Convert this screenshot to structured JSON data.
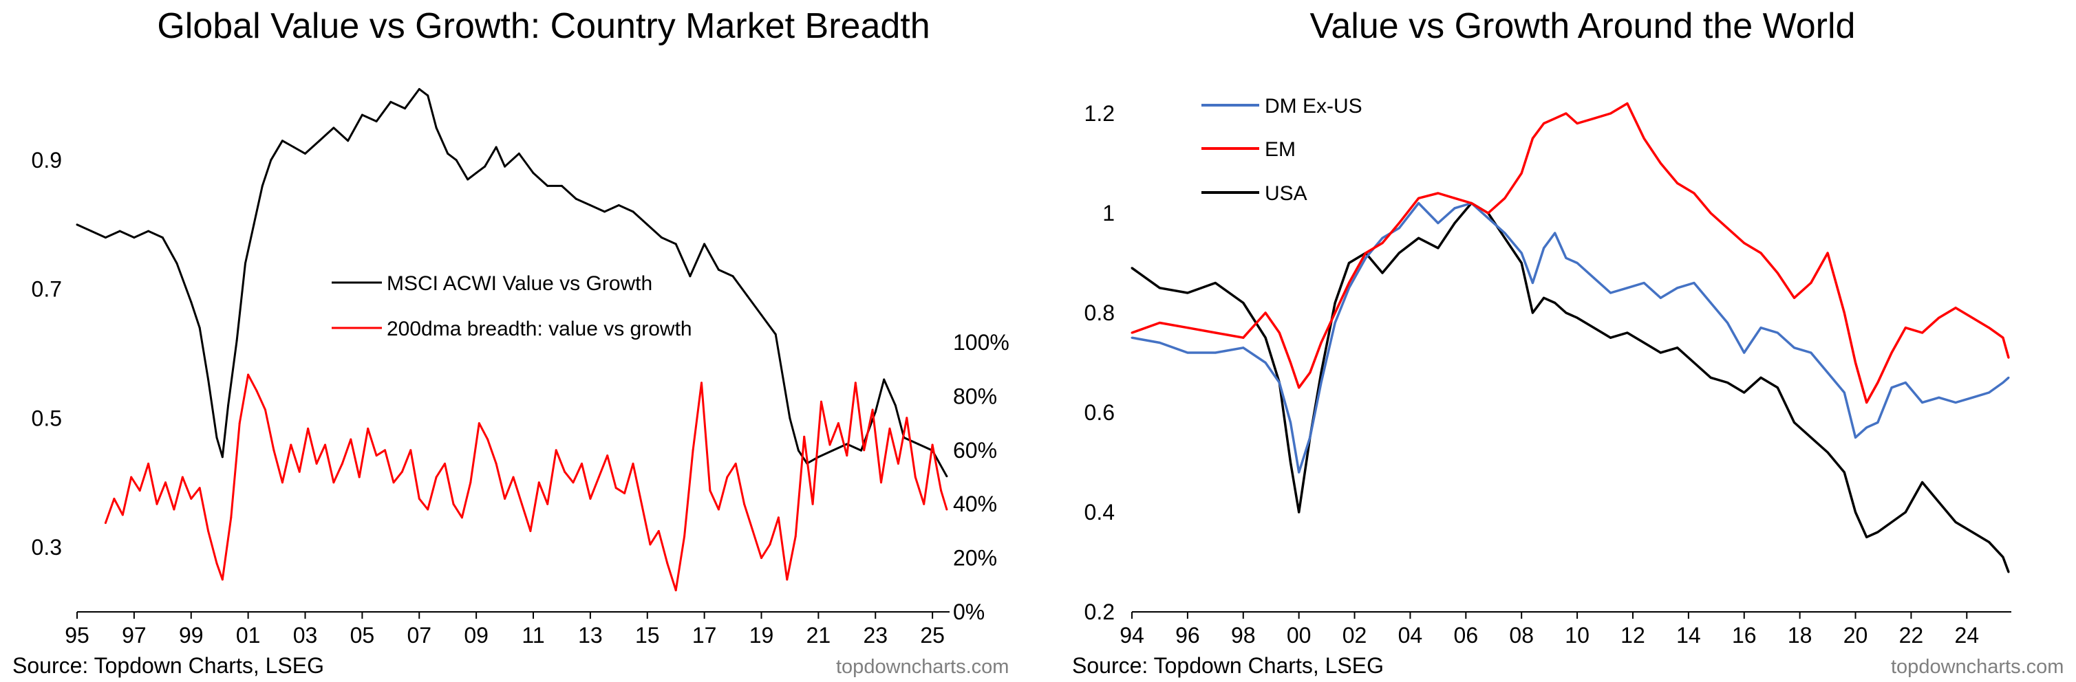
{
  "charts": {
    "left": {
      "title": "Global Value vs Growth: Country Market Breadth",
      "source": "Source: Topdown Charts, LSEG",
      "watermark": "topdowncharts.com"
    },
    "right": {
      "title": "Value vs Growth Around the World",
      "source": "Source: Topdown Charts, LSEG",
      "watermark": "topdowncharts.com"
    }
  },
  "colors": {
    "black": "#000000",
    "red": "#ff0000",
    "blue": "#4472c4",
    "axis": "#000000"
  },
  "chart_data": [
    {
      "type": "line",
      "title": "Global Value vs Growth: Country Market Breadth",
      "x_range": [
        1995,
        2025.6
      ],
      "x_ticks": [
        1995,
        1997,
        1999,
        2001,
        2003,
        2005,
        2007,
        2009,
        2011,
        2013,
        2015,
        2017,
        2019,
        2021,
        2023,
        2025
      ],
      "x_tick_labels": [
        "95",
        "97",
        "99",
        "01",
        "03",
        "05",
        "07",
        "09",
        "11",
        "13",
        "15",
        "17",
        "19",
        "21",
        "23",
        "25"
      ],
      "left_axis": {
        "ylim": [
          0.2,
          1.05
        ],
        "ticks": [
          0.3,
          0.5,
          0.7,
          0.9
        ],
        "tick_labels": [
          "0.3",
          "0.5",
          "0.7",
          "0.9"
        ]
      },
      "right_axis": {
        "ylim": [
          0,
          100
        ],
        "ticks": [
          0,
          20,
          40,
          60,
          80,
          100
        ],
        "tick_labels": [
          "0%",
          "20%",
          "40%",
          "60%",
          "80%",
          "100%"
        ]
      },
      "legend": {
        "placement": "center",
        "entries": [
          "MSCI ACWI Value vs Growth",
          "200dma breadth: value vs growth"
        ]
      },
      "series": [
        {
          "name": "MSCI ACWI Value vs Growth",
          "axis": "left",
          "color": "#000000",
          "x": [
            1995.0,
            1995.5,
            1996.0,
            1996.5,
            1997.0,
            1997.5,
            1998.0,
            1998.5,
            1999.0,
            1999.3,
            1999.6,
            1999.9,
            2000.1,
            2000.3,
            2000.6,
            2000.9,
            2001.2,
            2001.5,
            2001.8,
            2002.2,
            2002.6,
            2003.0,
            2003.5,
            2004.0,
            2004.5,
            2005.0,
            2005.5,
            2006.0,
            2006.5,
            2007.0,
            2007.3,
            2007.6,
            2008.0,
            2008.3,
            2008.7,
            2009.0,
            2009.3,
            2009.7,
            2010.0,
            2010.5,
            2011.0,
            2011.5,
            2012.0,
            2012.5,
            2013.0,
            2013.5,
            2014.0,
            2014.5,
            2015.0,
            2015.5,
            2016.0,
            2016.5,
            2017.0,
            2017.5,
            2018.0,
            2018.5,
            2019.0,
            2019.5,
            2020.0,
            2020.3,
            2020.6,
            2021.0,
            2021.5,
            2022.0,
            2022.5,
            2023.0,
            2023.3,
            2023.7,
            2024.0,
            2024.5,
            2025.0,
            2025.5
          ],
          "y": [
            0.8,
            0.79,
            0.78,
            0.79,
            0.78,
            0.79,
            0.78,
            0.74,
            0.68,
            0.64,
            0.56,
            0.47,
            0.44,
            0.52,
            0.62,
            0.74,
            0.8,
            0.86,
            0.9,
            0.93,
            0.92,
            0.91,
            0.93,
            0.95,
            0.93,
            0.97,
            0.96,
            0.99,
            0.98,
            1.01,
            1.0,
            0.95,
            0.91,
            0.9,
            0.87,
            0.88,
            0.89,
            0.92,
            0.89,
            0.91,
            0.88,
            0.86,
            0.86,
            0.84,
            0.83,
            0.82,
            0.83,
            0.82,
            0.8,
            0.78,
            0.77,
            0.72,
            0.77,
            0.73,
            0.72,
            0.69,
            0.66,
            0.63,
            0.5,
            0.45,
            0.43,
            0.44,
            0.45,
            0.46,
            0.45,
            0.51,
            0.56,
            0.52,
            0.47,
            0.46,
            0.45,
            0.41
          ]
        },
        {
          "name": "200dma breadth: value vs growth",
          "axis": "right",
          "color": "#ff0000",
          "x": [
            1996.0,
            1996.3,
            1996.6,
            1996.9,
            1997.2,
            1997.5,
            1997.8,
            1998.1,
            1998.4,
            1998.7,
            1999.0,
            1999.3,
            1999.6,
            1999.9,
            2000.1,
            2000.4,
            2000.7,
            2001.0,
            2001.3,
            2001.6,
            2001.9,
            2002.2,
            2002.5,
            2002.8,
            2003.1,
            2003.4,
            2003.7,
            2004.0,
            2004.3,
            2004.6,
            2004.9,
            2005.2,
            2005.5,
            2005.8,
            2006.1,
            2006.4,
            2006.7,
            2007.0,
            2007.3,
            2007.6,
            2007.9,
            2008.2,
            2008.5,
            2008.8,
            2009.1,
            2009.4,
            2009.7,
            2010.0,
            2010.3,
            2010.6,
            2010.9,
            2011.2,
            2011.5,
            2011.8,
            2012.1,
            2012.4,
            2012.7,
            2013.0,
            2013.3,
            2013.6,
            2013.9,
            2014.2,
            2014.5,
            2014.8,
            2015.1,
            2015.4,
            2015.7,
            2016.0,
            2016.3,
            2016.6,
            2016.9,
            2017.2,
            2017.5,
            2017.8,
            2018.1,
            2018.4,
            2018.7,
            2019.0,
            2019.3,
            2019.6,
            2019.9,
            2020.2,
            2020.5,
            2020.8,
            2021.1,
            2021.4,
            2021.7,
            2022.0,
            2022.3,
            2022.6,
            2022.9,
            2023.2,
            2023.5,
            2023.8,
            2024.1,
            2024.4,
            2024.7,
            2025.0,
            2025.3,
            2025.5
          ],
          "y": [
            33,
            42,
            36,
            50,
            45,
            55,
            40,
            48,
            38,
            50,
            42,
            46,
            30,
            18,
            12,
            35,
            70,
            88,
            82,
            75,
            60,
            48,
            62,
            52,
            68,
            55,
            62,
            48,
            55,
            64,
            50,
            68,
            58,
            60,
            48,
            52,
            60,
            42,
            38,
            50,
            55,
            40,
            35,
            48,
            70,
            64,
            55,
            42,
            50,
            40,
            30,
            48,
            40,
            60,
            52,
            48,
            55,
            42,
            50,
            58,
            46,
            44,
            55,
            40,
            25,
            30,
            18,
            8,
            28,
            60,
            85,
            45,
            38,
            50,
            55,
            40,
            30,
            20,
            25,
            35,
            12,
            28,
            65,
            40,
            78,
            62,
            70,
            58,
            85,
            60,
            75,
            48,
            68,
            55,
            72,
            50,
            40,
            62,
            45,
            38
          ]
        }
      ]
    },
    {
      "type": "line",
      "title": "Value vs Growth Around the World",
      "x_range": [
        1994,
        2025.6
      ],
      "x_ticks": [
        1994,
        1996,
        1998,
        2000,
        2002,
        2004,
        2006,
        2008,
        2010,
        2012,
        2014,
        2016,
        2018,
        2020,
        2022,
        2024
      ],
      "x_tick_labels": [
        "94",
        "96",
        "98",
        "00",
        "02",
        "04",
        "06",
        "08",
        "10",
        "12",
        "14",
        "16",
        "18",
        "20",
        "22",
        "24"
      ],
      "ylim": [
        0.2,
        1.25
      ],
      "y_ticks": [
        0.2,
        0.4,
        0.6,
        0.8,
        1.0,
        1.2
      ],
      "y_tick_labels": [
        "0.2",
        "0.4",
        "0.6",
        "0.8",
        "1",
        "1.2"
      ],
      "legend": {
        "placement": "top-left",
        "entries": [
          "DM Ex-US",
          "EM",
          "USA"
        ]
      },
      "series": [
        {
          "name": "DM Ex-US",
          "color": "#4472c4",
          "x": [
            1994.0,
            1995.0,
            1996.0,
            1997.0,
            1998.0,
            1998.8,
            1999.3,
            1999.7,
            2000.0,
            2000.4,
            2000.8,
            2001.3,
            2001.8,
            2002.4,
            2003.0,
            2003.6,
            2004.3,
            2005.0,
            2005.6,
            2006.2,
            2006.8,
            2007.4,
            2008.0,
            2008.4,
            2008.8,
            2009.2,
            2009.6,
            2010.0,
            2010.6,
            2011.2,
            2011.8,
            2012.4,
            2013.0,
            2013.6,
            2014.2,
            2014.8,
            2015.4,
            2016.0,
            2016.6,
            2017.2,
            2017.8,
            2018.4,
            2019.0,
            2019.6,
            2020.0,
            2020.4,
            2020.8,
            2021.3,
            2021.8,
            2022.4,
            2023.0,
            2023.6,
            2024.2,
            2024.8,
            2025.3,
            2025.5
          ],
          "y": [
            0.75,
            0.74,
            0.72,
            0.72,
            0.73,
            0.7,
            0.66,
            0.58,
            0.48,
            0.55,
            0.66,
            0.78,
            0.85,
            0.91,
            0.95,
            0.97,
            1.02,
            0.98,
            1.01,
            1.02,
            0.99,
            0.96,
            0.92,
            0.86,
            0.93,
            0.96,
            0.91,
            0.9,
            0.87,
            0.84,
            0.85,
            0.86,
            0.83,
            0.85,
            0.86,
            0.82,
            0.78,
            0.72,
            0.77,
            0.76,
            0.73,
            0.72,
            0.68,
            0.64,
            0.55,
            0.57,
            0.58,
            0.65,
            0.66,
            0.62,
            0.63,
            0.62,
            0.63,
            0.64,
            0.66,
            0.67
          ]
        },
        {
          "name": "EM",
          "color": "#ff0000",
          "x": [
            1994.0,
            1995.0,
            1996.0,
            1997.0,
            1998.0,
            1998.8,
            1999.3,
            1999.7,
            2000.0,
            2000.4,
            2000.8,
            2001.3,
            2001.8,
            2002.4,
            2003.0,
            2003.6,
            2004.3,
            2005.0,
            2005.6,
            2006.2,
            2006.8,
            2007.4,
            2008.0,
            2008.4,
            2008.8,
            2009.2,
            2009.6,
            2010.0,
            2010.6,
            2011.2,
            2011.8,
            2012.4,
            2013.0,
            2013.6,
            2014.2,
            2014.8,
            2015.4,
            2016.0,
            2016.6,
            2017.2,
            2017.8,
            2018.4,
            2019.0,
            2019.6,
            2020.0,
            2020.4,
            2020.8,
            2021.3,
            2021.8,
            2022.4,
            2023.0,
            2023.6,
            2024.2,
            2024.8,
            2025.3,
            2025.5
          ],
          "y": [
            0.76,
            0.78,
            0.77,
            0.76,
            0.75,
            0.8,
            0.76,
            0.7,
            0.65,
            0.68,
            0.74,
            0.8,
            0.86,
            0.92,
            0.94,
            0.98,
            1.03,
            1.04,
            1.03,
            1.02,
            1.0,
            1.03,
            1.08,
            1.15,
            1.18,
            1.19,
            1.2,
            1.18,
            1.19,
            1.2,
            1.22,
            1.15,
            1.1,
            1.06,
            1.04,
            1.0,
            0.97,
            0.94,
            0.92,
            0.88,
            0.83,
            0.86,
            0.92,
            0.8,
            0.7,
            0.62,
            0.66,
            0.72,
            0.77,
            0.76,
            0.79,
            0.81,
            0.79,
            0.77,
            0.75,
            0.71
          ]
        },
        {
          "name": "USA",
          "color": "#000000",
          "x": [
            1994.0,
            1995.0,
            1996.0,
            1997.0,
            1998.0,
            1998.8,
            1999.3,
            1999.7,
            2000.0,
            2000.4,
            2000.8,
            2001.3,
            2001.8,
            2002.4,
            2003.0,
            2003.6,
            2004.3,
            2005.0,
            2005.6,
            2006.2,
            2006.8,
            2007.4,
            2008.0,
            2008.4,
            2008.8,
            2009.2,
            2009.6,
            2010.0,
            2010.6,
            2011.2,
            2011.8,
            2012.4,
            2013.0,
            2013.6,
            2014.2,
            2014.8,
            2015.4,
            2016.0,
            2016.6,
            2017.2,
            2017.8,
            2018.4,
            2019.0,
            2019.6,
            2020.0,
            2020.4,
            2020.8,
            2021.3,
            2021.8,
            2022.4,
            2023.0,
            2023.6,
            2024.2,
            2024.8,
            2025.3,
            2025.5
          ],
          "y": [
            0.89,
            0.85,
            0.84,
            0.86,
            0.82,
            0.75,
            0.66,
            0.5,
            0.4,
            0.55,
            0.68,
            0.82,
            0.9,
            0.92,
            0.88,
            0.92,
            0.95,
            0.93,
            0.98,
            1.02,
            1.0,
            0.95,
            0.9,
            0.8,
            0.83,
            0.82,
            0.8,
            0.79,
            0.77,
            0.75,
            0.76,
            0.74,
            0.72,
            0.73,
            0.7,
            0.67,
            0.66,
            0.64,
            0.67,
            0.65,
            0.58,
            0.55,
            0.52,
            0.48,
            0.4,
            0.35,
            0.36,
            0.38,
            0.4,
            0.46,
            0.42,
            0.38,
            0.36,
            0.34,
            0.31,
            0.28
          ]
        }
      ]
    }
  ]
}
